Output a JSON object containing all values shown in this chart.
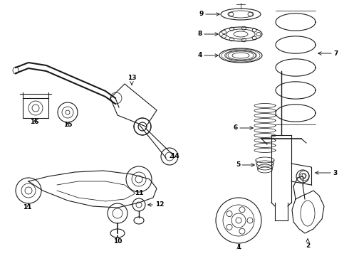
{
  "bg_color": "#ffffff",
  "line_color": "#1a1a1a",
  "fig_width": 4.9,
  "fig_height": 3.6,
  "dpi": 100,
  "label_fontsize": 6.5
}
